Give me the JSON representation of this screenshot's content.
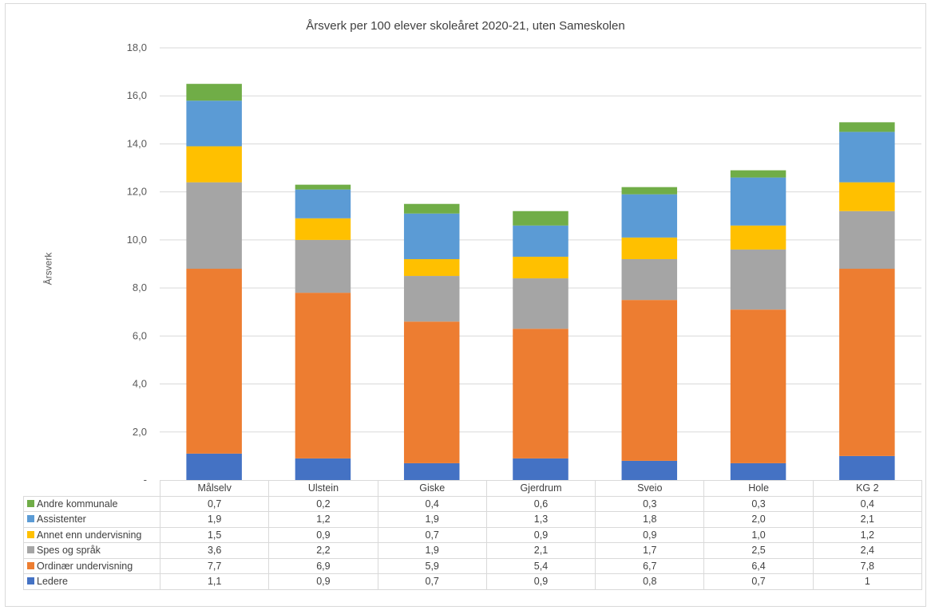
{
  "chart_data": {
    "type": "bar",
    "stacked": true,
    "title": "Årsverk per 100 elever skoleåret 2020-21, uten Sameskolen",
    "ylabel": "Årsverk",
    "xlabel": "",
    "ylim": [
      0,
      18
    ],
    "yticks": [
      "-",
      "2,0",
      "4,0",
      "6,0",
      "8,0",
      "10,0",
      "12,0",
      "14,0",
      "16,0",
      "18,0"
    ],
    "grid": true,
    "legend": "data table",
    "categories": [
      "Målselv",
      "Ulstein",
      "Giske",
      "Gjerdrum",
      "Sveio",
      "Hole",
      "KG 2"
    ],
    "series": [
      {
        "name": "Ledere",
        "color": "#4472C4",
        "values": [
          1.1,
          0.9,
          0.7,
          0.9,
          0.8,
          0.7,
          1
        ],
        "labels": [
          "1,1",
          "0,9",
          "0,7",
          "0,9",
          "0,8",
          "0,7",
          "1"
        ]
      },
      {
        "name": "Ordinær undervisning",
        "color": "#ED7D31",
        "values": [
          7.7,
          6.9,
          5.9,
          5.4,
          6.7,
          6.4,
          7.8
        ],
        "labels": [
          "7,7",
          "6,9",
          "5,9",
          "5,4",
          "6,7",
          "6,4",
          "7,8"
        ]
      },
      {
        "name": "Spes og språk",
        "color": "#A5A5A5",
        "values": [
          3.6,
          2.2,
          1.9,
          2.1,
          1.7,
          2.5,
          2.4
        ],
        "labels": [
          "3,6",
          "2,2",
          "1,9",
          "2,1",
          "1,7",
          "2,5",
          "2,4"
        ]
      },
      {
        "name": "Annet enn undervisning",
        "color": "#FFC000",
        "values": [
          1.5,
          0.9,
          0.7,
          0.9,
          0.9,
          1.0,
          1.2
        ],
        "labels": [
          "1,5",
          "0,9",
          "0,7",
          "0,9",
          "0,9",
          "1,0",
          "1,2"
        ]
      },
      {
        "name": "Assistenter",
        "color": "#5B9BD5",
        "values": [
          1.9,
          1.2,
          1.9,
          1.3,
          1.8,
          2.0,
          2.1
        ],
        "labels": [
          "1,9",
          "1,2",
          "1,9",
          "1,3",
          "1,8",
          "2,0",
          "2,1"
        ]
      },
      {
        "name": "Andre kommunale",
        "color": "#70AD47",
        "values": [
          0.7,
          0.2,
          0.4,
          0.6,
          0.3,
          0.3,
          0.4
        ],
        "labels": [
          "0,7",
          "0,2",
          "0,4",
          "0,6",
          "0,3",
          "0,3",
          "0,4"
        ]
      }
    ]
  }
}
